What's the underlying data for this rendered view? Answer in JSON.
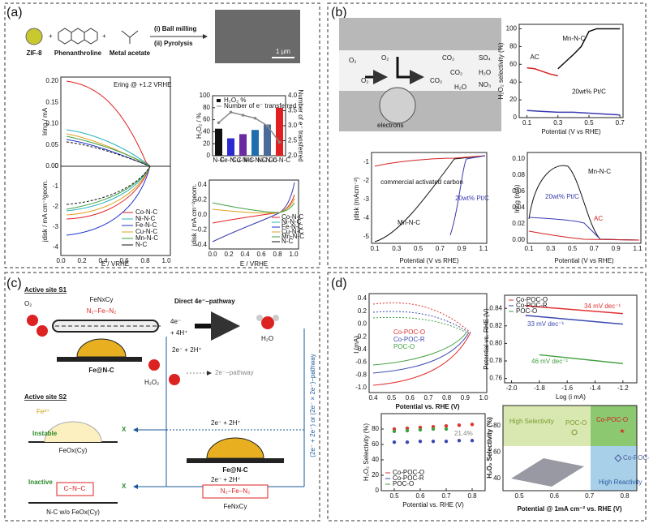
{
  "panel_a": {
    "label": "(a)",
    "scheme": {
      "zif8": "ZIF-8",
      "phen": "Phenanthroline",
      "acetate": "Metal acetate",
      "step1": "(i) Ball milling",
      "step2": "(ii) Pyrolysis",
      "scale_bar": "1 μm"
    },
    "rrde": {
      "annotation": "Ering @ +1.2 VRHE",
      "y_label_ring": "Iring / mA",
      "y_label_disk": "jdisk / mA cm⁻²geom.",
      "x_label": "E / VRHE",
      "xticks": [
        "0.0",
        "0.2",
        "0.4",
        "0.6",
        "0.8",
        "1.0"
      ],
      "yticks_ring": [
        "0.20",
        "0.15",
        "0.10",
        "0.05",
        "0.00"
      ],
      "yticks_disk": [
        "0",
        "-1",
        "-2",
        "-3",
        "-4"
      ],
      "legend": [
        "Co-N-C",
        "Ni-N-C",
        "Fe-N-C",
        "Cu-N-C",
        "Mn-N-C",
        "N-C"
      ]
    },
    "bar_chart": {
      "type": "bar",
      "categories": [
        "N-C",
        "Fe-N-C",
        "Cu-N-C",
        "Mn-N-C",
        "Ni-N-C",
        "Co-N-C"
      ],
      "bar_colors": [
        "#111111",
        "#2a2ad0",
        "#6a2aa0",
        "#1f6fb0",
        "#4a6a9a",
        "#e02020"
      ],
      "series": [
        {
          "name": "H₂O₂ %",
          "color": "#111111",
          "values": [
            45,
            29,
            36,
            43,
            52,
            80
          ]
        },
        {
          "name": "Number of e⁻ transferred",
          "color": "#888888",
          "type": "line",
          "axis": "y2",
          "values": [
            3.1,
            3.45,
            3.35,
            3.25,
            3.0,
            2.45
          ]
        }
      ],
      "ylim": [
        0,
        100
      ],
      "yticks": [
        0,
        20,
        40,
        60,
        80,
        100
      ],
      "y2lim": [
        2,
        4
      ],
      "y2ticks": [
        {
          "value": 2,
          "label": "2.0"
        },
        2.5,
        {
          "value": 3,
          "label": "3.0"
        },
        3.5,
        {
          "value": 4,
          "label": "4.0"
        }
      ],
      "y_label": "H₂O₂ / %",
      "y2_label": "Number of e⁻ transferred",
      "legend": "upper-left"
    },
    "lsv": {
      "y_label": "jdisk / mA cm⁻²geom.",
      "x_label": "E / VRHE",
      "xticks": [
        "0.0",
        "0.2",
        "0.4",
        "0.6",
        "0.8",
        "1.0"
      ],
      "yticks": [
        "0.4",
        "0.2",
        "0.0",
        "-0.2",
        "-0.4"
      ],
      "legend": [
        "Co-N-C",
        "Ni-N-C",
        "Fe-N-C",
        "Cu-N-C",
        "Mn-N-C",
        "N-C"
      ]
    }
  },
  "panel_b": {
    "label": "(b)",
    "scheme": {
      "electrons": "electrons",
      "species": [
        "O₂",
        "O₂",
        "O₂",
        "CO₂",
        "SO₄",
        "H₂O",
        "NO₃",
        "CO₂",
        "CO₂",
        "H₂O"
      ]
    },
    "selectivity": {
      "type": "line",
      "x_label": "Potential (V vs RHE)",
      "y_label": "H₂O₂ selectivity (%)",
      "xlim": [
        0.05,
        0.72
      ],
      "xticks": [
        0.1,
        0.3,
        0.5,
        0.7
      ],
      "ylim": [
        0,
        105
      ],
      "yticks": [
        0,
        20,
        40,
        60,
        80,
        100
      ],
      "legend": "inline",
      "series": [
        {
          "name": "AC",
          "color": "#d42020",
          "x": [
            0.1,
            0.15,
            0.2,
            0.25,
            0.3
          ],
          "values": [
            56,
            55,
            52,
            49,
            47
          ]
        },
        {
          "name": "Mn-N-C",
          "color": "#111111",
          "x": [
            0.3,
            0.35,
            0.4,
            0.45,
            0.5,
            0.55,
            0.6,
            0.65,
            0.7
          ],
          "values": [
            55,
            63,
            71,
            80,
            97,
            100,
            100,
            100,
            100
          ]
        },
        {
          "name": "20wt% Pt/C",
          "color": "#3a3ab0",
          "x": [
            0.1,
            0.2,
            0.3,
            0.4,
            0.5,
            0.6,
            0.7
          ],
          "values": [
            8,
            7,
            6,
            6,
            5,
            4,
            3
          ]
        }
      ]
    },
    "disk": {
      "y_label": "jdisk (mAcm⁻²)",
      "x_label": "Potential (V vs RHE)",
      "xticks": [
        "0.1",
        "0.3",
        "0.5",
        "0.7",
        "0.9",
        "1.1"
      ],
      "yticks": [
        "-1",
        "-2",
        "-3",
        "-4",
        "-5"
      ],
      "labels": [
        "commercial activated carbon",
        "20wt% Pt/C",
        "Mn-N-C"
      ]
    },
    "ring": {
      "y_label": "Iring (mA)",
      "x_label": "Potential (V vs RHE)",
      "xticks": [
        "0.1",
        "0.3",
        "0.5",
        "0.7",
        "0.9",
        "1.1"
      ],
      "yticks": [
        "0.00",
        "0.02",
        "0.04",
        "0.06",
        "0.08",
        "0.10"
      ],
      "labels": [
        "Mn-N-C",
        "20wt% Pt/C",
        "AC"
      ]
    }
  },
  "panel_c": {
    "label": "(c)",
    "texts": {
      "site1": "Active site S1",
      "fenxcy": "FeNxCy",
      "n2fen2": "N₂−Fe−N₂",
      "o2": "O₂",
      "direct": "Direct 4e⁻−pathway",
      "four_e": "4e⁻",
      "four_h": "+ 4H⁺",
      "h2o": "H₂O",
      "fe_nc": "Fe@N-C",
      "two_e": "2e⁻ + 2H⁺",
      "h2o2": "H₂O₂",
      "two_path": "2e⁻−pathway",
      "site2": "Active site S2",
      "fe3": "Fe³⁺",
      "instable": "Instable",
      "feox": "FeOx(Cy)",
      "x1": "X",
      "two_e2": "2e⁻ + 2H⁺",
      "fe_nc2": "Fe@N-C",
      "two_e3": "2e⁻ + 2H⁺",
      "inactive": "Inactive",
      "cnc": "C−N−C",
      "x2": "X",
      "nc_wo": "N-C w/o FeOx(Cy)",
      "n2fen2_b": "N₂−Fe−N₂",
      "fenxcy_b": "FeNxCy",
      "side": "(2e⁻ + 2e⁻) or (2e⁻ × 2e⁻)−pathway"
    }
  },
  "panel_d": {
    "label": "(d)",
    "lsv": {
      "y_label": "I (mA)",
      "x_label": "Potential vs. RHE (V)",
      "xticks": [
        "0.4",
        "0.5",
        "0.6",
        "0.7",
        "0.8",
        "0.9",
        "1.0"
      ],
      "yticks": [
        "0.4",
        "0.2",
        "0.0",
        "-0.2",
        "-0.4",
        "-0.6",
        "-0.8",
        "-1.0"
      ],
      "legend": [
        "Co-POC-O",
        "Co-POC-R",
        "POC-O"
      ]
    },
    "tafel": {
      "type": "line",
      "x_label": "Log (i mA)",
      "y_label": "Potential vs. RHE (V)",
      "xlim": [
        -2.05,
        -1.1
      ],
      "xticks": [
        {
          "value": -2,
          "label": "-2.0"
        },
        -1.8,
        -1.6,
        -1.4,
        -1.2
      ],
      "ylim": [
        0.755,
        0.855
      ],
      "yticks": [
        0.76,
        0.78,
        {
          "value": 0.8,
          "label": "0.80"
        },
        0.82,
        0.84
      ],
      "legend": "upper-left",
      "series": [
        {
          "name": "Co-POC-O",
          "color": "#e03030",
          "x": [
            -1.9,
            -1.2
          ],
          "values": [
            0.843,
            0.834
          ]
        },
        {
          "name": "Co-POC-R",
          "color": "#3a4ab0",
          "x": [
            -1.9,
            -1.2
          ],
          "values": [
            0.832,
            0.822
          ]
        },
        {
          "name": "POC-O",
          "color": "#40a040",
          "x": [
            -1.8,
            -1.2
          ],
          "values": [
            0.787,
            0.777
          ]
        }
      ],
      "annotations": [
        "34 mV dec⁻¹",
        "33 mV dec⁻¹",
        "46 mV dec⁻¹"
      ]
    },
    "scatter": {
      "type": "scatter",
      "x_label": "Potential vs. RHE (V)",
      "y_label": "H₂O₂ Selectivity (%)",
      "xlim": [
        0.45,
        0.85
      ],
      "xticks": [
        0.5,
        0.6,
        0.7,
        0.8
      ],
      "ylim": [
        0,
        100
      ],
      "yticks": [
        0,
        20,
        40,
        60,
        80
      ],
      "legend": "lower-left",
      "series": [
        {
          "name": "Co-POC-O",
          "color": "#e03030",
          "x": [
            0.5,
            0.55,
            0.6,
            0.65,
            0.7,
            0.75,
            0.8
          ],
          "values": [
            80,
            81,
            82,
            83,
            84,
            85,
            86
          ]
        },
        {
          "name": "Co-POC-R",
          "color": "#3a4ab0",
          "x": [
            0.5,
            0.55,
            0.6,
            0.65,
            0.7,
            0.75,
            0.8
          ],
          "values": [
            63,
            63,
            64,
            64,
            64,
            65,
            65
          ]
        },
        {
          "name": "POC-O",
          "color": "#40a040",
          "x": [
            0.5,
            0.55,
            0.6,
            0.65,
            0.7
          ],
          "values": [
            77,
            78,
            79,
            80,
            80
          ]
        }
      ],
      "annotation": "21.4%"
    },
    "map": {
      "y_label": "H₂O₂ Selectivity (%)",
      "x_label": "Potential @ 1mA cm⁻² vs. RHE (V)",
      "xticks": [
        "0.5",
        "0.6",
        "0.7",
        "0.8"
      ],
      "yticks": [
        "40",
        "60",
        "80"
      ],
      "labels": [
        "High Selectivity",
        "High Reactivity",
        "POC-O",
        "Co-POC-O",
        "Co-POC-R"
      ]
    }
  }
}
